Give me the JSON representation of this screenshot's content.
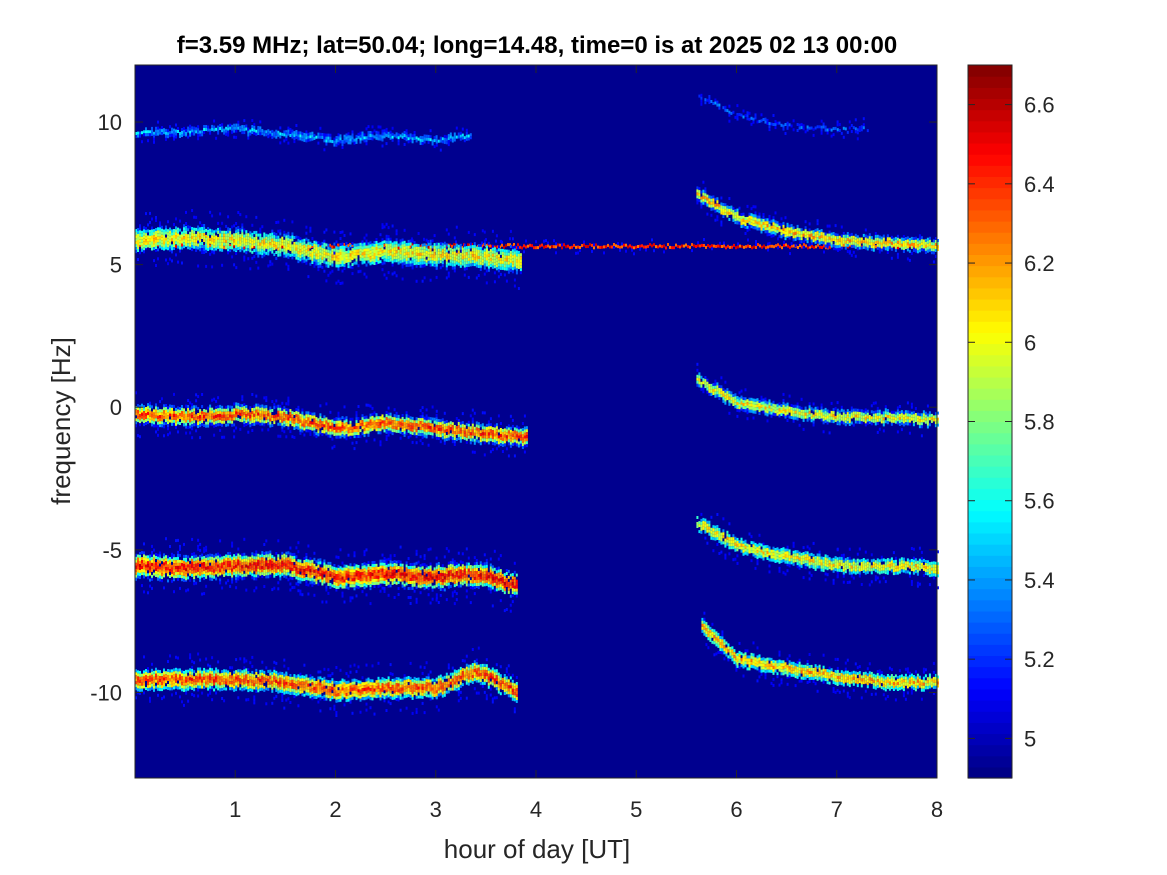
{
  "chart_data": {
    "type": "heatmap",
    "title": "f=3.59 MHz;  lat=50.04; long=14.48, time=0 is at 2025 02 13 00:00",
    "xlabel": "hour of day [UT]",
    "ylabel": "frequency [Hz]",
    "xlim": [
      0,
      8
    ],
    "ylim": [
      -13,
      12
    ],
    "x_ticks": [
      1,
      2,
      3,
      4,
      5,
      6,
      7,
      8
    ],
    "y_ticks": [
      -10,
      -5,
      0,
      5,
      10
    ],
    "x_tick_labels": [
      "1",
      "2",
      "3",
      "4",
      "5",
      "6",
      "7",
      "8"
    ],
    "y_tick_labels": [
      "-10",
      "-5",
      "0",
      "5",
      "10"
    ],
    "colorbar": {
      "colormap": "jet",
      "clim": [
        4.9,
        6.7
      ],
      "ticks": [
        5,
        5.2,
        5.4,
        5.6,
        5.8,
        6,
        6.2,
        6.4,
        6.6
      ],
      "tick_labels": [
        "5",
        "5.2",
        "5.4",
        "5.6",
        "5.8",
        "6",
        "6.2",
        "6.4",
        "6.6"
      ]
    },
    "background_value": 4.95,
    "traces": [
      {
        "name": "trace 10 Hz (early)",
        "points": [
          [
            0.0,
            9.7
          ],
          [
            0.5,
            9.7
          ],
          [
            1.0,
            9.8
          ],
          [
            1.5,
            9.6
          ],
          [
            2.0,
            9.4
          ],
          [
            2.5,
            9.6
          ],
          [
            3.0,
            9.4
          ],
          [
            3.35,
            9.6
          ]
        ],
        "peak": 5.6,
        "spread": 0.15
      },
      {
        "name": "trace 10 Hz (late)",
        "points": [
          [
            5.6,
            11.0
          ],
          [
            6.0,
            10.3
          ],
          [
            6.5,
            9.9
          ],
          [
            7.0,
            9.8
          ],
          [
            7.3,
            9.8
          ]
        ],
        "peak": 5.4,
        "spread": 0.12
      },
      {
        "name": "trace 5.7 Hz (constant)",
        "points": [
          [
            0.0,
            5.7
          ],
          [
            8.0,
            5.7
          ]
        ],
        "peak": 6.6,
        "spread": 0.08
      },
      {
        "name": "trace 5.7 Hz (early spread)",
        "points": [
          [
            0.0,
            5.9
          ],
          [
            0.5,
            6.0
          ],
          [
            1.0,
            5.9
          ],
          [
            1.5,
            5.7
          ],
          [
            2.0,
            5.3
          ],
          [
            2.5,
            5.5
          ],
          [
            3.0,
            5.4
          ],
          [
            3.5,
            5.3
          ],
          [
            3.85,
            5.2
          ]
        ],
        "peak": 6.2,
        "spread": 0.45
      },
      {
        "name": "trace 5.7 Hz (late branch)",
        "points": [
          [
            5.6,
            7.5
          ],
          [
            6.0,
            6.7
          ],
          [
            6.5,
            6.2
          ],
          [
            7.0,
            5.9
          ],
          [
            7.5,
            5.8
          ],
          [
            8.0,
            5.7
          ]
        ],
        "peak": 6.3,
        "spread": 0.25
      },
      {
        "name": "trace 0 Hz (early)",
        "points": [
          [
            0.0,
            -0.2
          ],
          [
            0.5,
            -0.3
          ],
          [
            1.0,
            -0.2
          ],
          [
            1.5,
            -0.3
          ],
          [
            2.0,
            -0.7
          ],
          [
            2.5,
            -0.5
          ],
          [
            3.0,
            -0.7
          ],
          [
            3.5,
            -0.9
          ],
          [
            3.9,
            -1.0
          ]
        ],
        "peak": 6.5,
        "spread": 0.35
      },
      {
        "name": "trace 0 Hz (late)",
        "points": [
          [
            5.6,
            1.0
          ],
          [
            6.0,
            0.2
          ],
          [
            6.5,
            -0.1
          ],
          [
            7.0,
            -0.3
          ],
          [
            7.5,
            -0.3
          ],
          [
            8.0,
            -0.4
          ]
        ],
        "peak": 6.2,
        "spread": 0.25
      },
      {
        "name": "trace -5.5 Hz (early)",
        "points": [
          [
            0.0,
            -5.5
          ],
          [
            0.5,
            -5.6
          ],
          [
            1.0,
            -5.5
          ],
          [
            1.5,
            -5.5
          ],
          [
            2.0,
            -5.9
          ],
          [
            2.5,
            -5.8
          ],
          [
            3.0,
            -5.9
          ],
          [
            3.4,
            -5.8
          ],
          [
            3.8,
            -6.2
          ]
        ],
        "peak": 6.6,
        "spread": 0.45
      },
      {
        "name": "trace -5.5 Hz (late)",
        "points": [
          [
            5.6,
            -4.0
          ],
          [
            6.0,
            -4.8
          ],
          [
            6.5,
            -5.2
          ],
          [
            7.0,
            -5.5
          ],
          [
            7.5,
            -5.5
          ],
          [
            8.0,
            -5.6
          ]
        ],
        "peak": 6.2,
        "spread": 0.3
      },
      {
        "name": "trace -9.5 Hz (early)",
        "points": [
          [
            0.0,
            -9.5
          ],
          [
            0.5,
            -9.5
          ],
          [
            1.0,
            -9.5
          ],
          [
            1.5,
            -9.6
          ],
          [
            2.0,
            -9.9
          ],
          [
            2.5,
            -9.8
          ],
          [
            3.0,
            -9.8
          ],
          [
            3.4,
            -9.2
          ],
          [
            3.8,
            -9.9
          ]
        ],
        "peak": 6.5,
        "spread": 0.4
      },
      {
        "name": "trace -9.5 Hz (late)",
        "points": [
          [
            5.65,
            -7.6
          ],
          [
            6.0,
            -8.8
          ],
          [
            6.5,
            -9.1
          ],
          [
            7.0,
            -9.4
          ],
          [
            7.5,
            -9.6
          ],
          [
            8.0,
            -9.6
          ]
        ],
        "peak": 6.3,
        "spread": 0.3
      }
    ]
  }
}
